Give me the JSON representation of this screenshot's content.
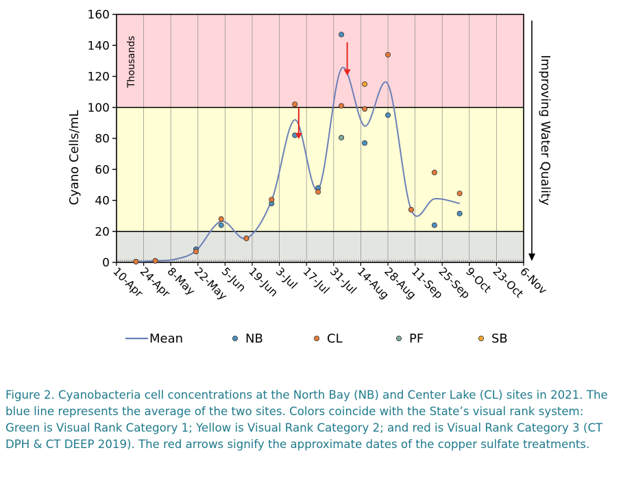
{
  "chart_data": {
    "type": "scatter",
    "y_axis_label": "Cyano Cells/mL",
    "y_units_note": "Thousands",
    "right_label": "Improving Water Quality",
    "ylim": [
      0,
      160
    ],
    "y_ticks": [
      "0",
      "20",
      "40",
      "60",
      "80",
      "100",
      "120",
      "140",
      "160"
    ],
    "x_ticks": [
      "10-Apr",
      "24-Apr",
      "8-May",
      "22-May",
      "5-Jun",
      "19-Jun",
      "3-Jul",
      "17-Jul",
      "31-Jul",
      "14-Aug",
      "28-Aug",
      "11-Sep",
      "25-Sep",
      "9-Oct",
      "23-Oct",
      "6-Nov"
    ],
    "x_start": "2021-04-10",
    "xlim": [
      "2021-04-10",
      "2021-11-06"
    ],
    "bands": [
      {
        "from": 0,
        "to": 20,
        "color": "#e3e5e1"
      },
      {
        "from": 20,
        "to": 100,
        "color": "#fffed5"
      },
      {
        "from": 100,
        "to": 160,
        "color": "#ffd6da"
      }
    ],
    "series": [
      {
        "name": "Mean",
        "kind": "line",
        "color": "#6b7fb8",
        "points": [
          [
            "2021-04-20",
            0.5
          ],
          [
            "2021-04-30",
            1
          ],
          [
            "2021-05-10",
            2
          ],
          [
            "2021-05-21",
            7.5
          ],
          [
            "2021-06-03",
            26.5
          ],
          [
            "2021-06-16",
            15.5
          ],
          [
            "2021-06-29",
            40
          ],
          [
            "2021-07-11",
            92
          ],
          [
            "2021-07-23",
            47
          ],
          [
            "2021-08-04",
            125
          ],
          [
            "2021-08-16",
            88
          ],
          [
            "2021-08-28",
            115
          ],
          [
            "2021-09-09",
            34
          ],
          [
            "2021-09-21",
            41
          ],
          [
            "2021-10-04",
            38
          ]
        ]
      },
      {
        "name": "NB",
        "kind": "marker",
        "color": "#4e8fbf",
        "points": [
          [
            "2021-04-20",
            0.5
          ],
          [
            "2021-04-30",
            1
          ],
          [
            "2021-05-21",
            8.5
          ],
          [
            "2021-06-03",
            24
          ],
          [
            "2021-06-16",
            15.5
          ],
          [
            "2021-06-29",
            38
          ],
          [
            "2021-07-11",
            82
          ],
          [
            "2021-07-23",
            48
          ],
          [
            "2021-08-04",
            147
          ],
          [
            "2021-08-16",
            77
          ],
          [
            "2021-08-28",
            95
          ],
          [
            "2021-09-09",
            34
          ],
          [
            "2021-09-21",
            24
          ],
          [
            "2021-10-04",
            31.5
          ]
        ]
      },
      {
        "name": "CL",
        "kind": "marker",
        "color": "#e27b3c",
        "points": [
          [
            "2021-04-20",
            0.5
          ],
          [
            "2021-04-30",
            1
          ],
          [
            "2021-05-21",
            7
          ],
          [
            "2021-06-03",
            28
          ],
          [
            "2021-06-16",
            15.5
          ],
          [
            "2021-06-29",
            40.5
          ],
          [
            "2021-07-11",
            102
          ],
          [
            "2021-07-23",
            45.5
          ],
          [
            "2021-08-04",
            101
          ],
          [
            "2021-08-16",
            99
          ],
          [
            "2021-08-28",
            134
          ],
          [
            "2021-09-09",
            34
          ],
          [
            "2021-09-21",
            58
          ],
          [
            "2021-10-04",
            44.5
          ]
        ]
      },
      {
        "name": "PF",
        "kind": "marker",
        "color": "#7fa89a",
        "points": [
          [
            "2021-08-04",
            80.5
          ]
        ]
      },
      {
        "name": "SB",
        "kind": "marker",
        "color": "#f2a531",
        "points": [
          [
            "2021-08-16",
            115
          ]
        ]
      }
    ],
    "arrows": [
      {
        "date": "2021-07-13",
        "from": 100,
        "to": 80,
        "color": "#e8261f"
      },
      {
        "date": "2021-08-07",
        "from": 142,
        "to": 121,
        "color": "#e8261f"
      }
    ],
    "legend_position": "bottom"
  },
  "caption": "Figure 2.  Cyanobacteria cell concentrations at the North Bay (NB) and Center Lake (CL) sites in 2021.  The blue line represents the average of the two sites.  Colors coincide with the State’s visual rank system: Green is Visual Rank Category 1; Yellow is Visual Rank Category 2; and red is Visual Rank Category 3 (CT DPH & CT DEEP 2019).  The red arrows signify the approximate dates of the copper sulfate treatments."
}
